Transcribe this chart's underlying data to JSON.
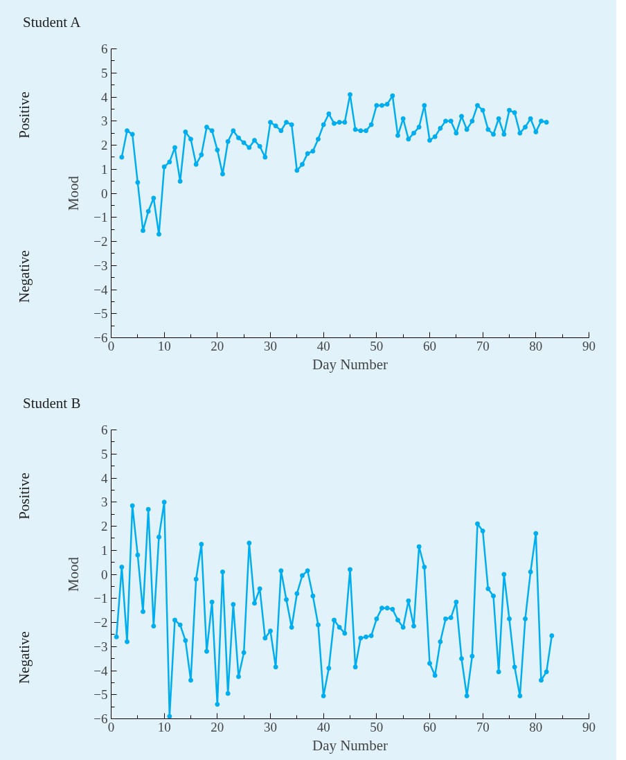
{
  "chart_data": [
    {
      "type": "line",
      "title": "Student A",
      "xlabel": "Day Number",
      "ylabel": "Mood",
      "annotations": [
        "Positive",
        "Negative"
      ],
      "marker": "circle",
      "grid": false,
      "xlim": [
        0,
        90
      ],
      "ylim": [
        -6,
        6
      ],
      "xticks": [
        0,
        10,
        20,
        30,
        40,
        50,
        60,
        70,
        80,
        90
      ],
      "yticks": [
        {
          "value": -6,
          "label": "−6"
        },
        {
          "value": -5,
          "label": "−5"
        },
        {
          "value": -4,
          "label": "−4"
        },
        {
          "value": -3,
          "label": "−3"
        },
        {
          "value": -2,
          "label": "−2"
        },
        {
          "value": -1,
          "label": "−1"
        },
        0,
        1,
        2,
        3,
        4,
        5,
        6
      ],
      "series": [
        {
          "color": "#00aeef",
          "x": [
            2,
            3,
            4,
            5,
            6,
            7,
            8,
            9,
            10,
            11,
            12,
            13,
            14,
            15,
            16,
            17,
            18,
            19,
            20,
            21,
            22,
            23,
            24,
            25,
            26,
            27,
            28,
            29,
            30,
            31,
            32,
            33,
            34,
            35,
            36,
            37,
            38,
            39,
            40,
            41,
            42,
            43,
            44,
            45,
            46,
            47,
            48,
            49,
            50,
            51,
            52,
            53,
            54,
            55,
            56,
            57,
            58,
            59,
            60,
            61,
            62,
            63,
            64,
            65,
            66,
            67,
            68,
            69,
            70,
            71,
            72,
            73,
            74,
            75,
            76,
            77,
            78,
            79,
            80,
            81,
            82
          ],
          "values": [
            1.5,
            2.6,
            2.45,
            0.45,
            -1.55,
            -0.75,
            -0.2,
            -1.7,
            1.1,
            1.3,
            1.9,
            0.5,
            2.55,
            2.25,
            1.2,
            1.6,
            2.75,
            2.6,
            1.8,
            0.8,
            2.15,
            2.6,
            2.3,
            2.1,
            1.9,
            2.2,
            1.95,
            1.5,
            2.95,
            2.8,
            2.6,
            2.95,
            2.85,
            0.95,
            1.2,
            1.65,
            1.75,
            2.25,
            2.85,
            3.3,
            2.9,
            2.95,
            2.95,
            4.1,
            2.65,
            2.6,
            2.6,
            2.85,
            3.65,
            3.65,
            3.7,
            4.05,
            2.4,
            3.1,
            2.25,
            2.5,
            2.75,
            3.65,
            2.2,
            2.35,
            2.7,
            3.0,
            3.0,
            2.5,
            3.2,
            2.65,
            3.0,
            3.65,
            3.45,
            2.65,
            2.45,
            3.1,
            2.45,
            3.45,
            3.35,
            2.5,
            2.75,
            3.1,
            2.55,
            3.0,
            2.95
          ]
        }
      ]
    },
    {
      "type": "line",
      "title": "Student B",
      "xlabel": "Day Number",
      "ylabel": "Mood",
      "annotations": [
        "Positive",
        "Negative"
      ],
      "marker": "circle",
      "grid": false,
      "xlim": [
        0,
        90
      ],
      "ylim": [
        -6,
        6
      ],
      "xticks": [
        0,
        10,
        20,
        30,
        40,
        50,
        60,
        70,
        80,
        90
      ],
      "yticks": [
        {
          "value": -6,
          "label": "−6"
        },
        {
          "value": -5,
          "label": "−5"
        },
        {
          "value": -4,
          "label": "−4"
        },
        {
          "value": -3,
          "label": "−3"
        },
        {
          "value": -2,
          "label": "−2"
        },
        {
          "value": -1,
          "label": "−1"
        },
        0,
        1,
        2,
        3,
        4,
        5,
        6
      ],
      "series": [
        {
          "color": "#00aeef",
          "x": [
            1,
            2,
            3,
            4,
            5,
            6,
            7,
            8,
            9,
            10,
            11,
            12,
            13,
            14,
            15,
            16,
            17,
            18,
            19,
            20,
            21,
            22,
            23,
            24,
            25,
            26,
            27,
            28,
            29,
            30,
            31,
            32,
            33,
            34,
            35,
            36,
            37,
            38,
            39,
            40,
            41,
            42,
            43,
            44,
            45,
            46,
            47,
            48,
            49,
            50,
            51,
            52,
            53,
            54,
            55,
            56,
            57,
            58,
            59,
            60,
            61,
            62,
            63,
            64,
            65,
            66,
            67,
            68,
            69,
            70,
            71,
            72,
            73,
            74,
            75,
            76,
            77,
            78,
            79,
            80,
            81,
            82,
            83
          ],
          "values": [
            -2.6,
            0.3,
            -2.8,
            2.85,
            0.8,
            -1.55,
            2.7,
            -2.15,
            1.55,
            3.0,
            -5.9,
            -1.9,
            -2.1,
            -2.75,
            -4.4,
            -0.2,
            1.25,
            -3.2,
            -1.15,
            -5.4,
            0.1,
            -4.95,
            -1.25,
            -4.25,
            -3.25,
            1.3,
            -1.2,
            -0.6,
            -2.65,
            -2.35,
            -3.85,
            0.15,
            -1.05,
            -2.2,
            -0.8,
            -0.05,
            0.15,
            -0.9,
            -2.1,
            -5.05,
            -3.9,
            -1.9,
            -2.2,
            -2.45,
            0.2,
            -3.85,
            -2.65,
            -2.6,
            -2.55,
            -1.85,
            -1.4,
            -1.4,
            -1.45,
            -1.9,
            -2.2,
            -1.1,
            -2.15,
            1.15,
            0.3,
            -3.7,
            -4.2,
            -2.8,
            -1.85,
            -1.8,
            -1.15,
            -3.5,
            -5.05,
            -3.4,
            2.1,
            1.8,
            -0.6,
            -0.9,
            -4.05,
            0.0,
            -1.85,
            -3.85,
            -5.05,
            -1.85,
            0.1,
            1.7,
            -4.4,
            -4.05,
            -2.55
          ]
        }
      ]
    }
  ]
}
